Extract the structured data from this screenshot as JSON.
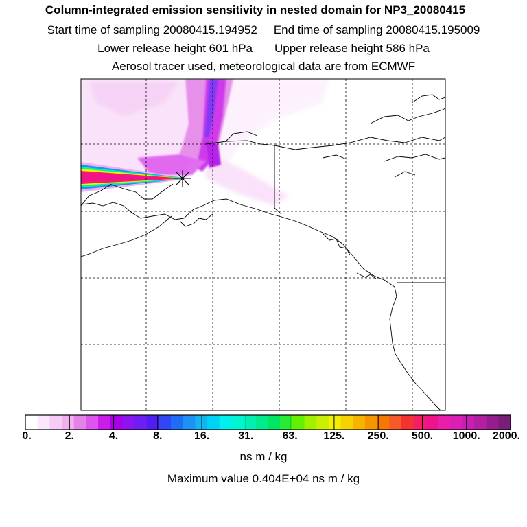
{
  "title": {
    "line1": "Column-integrated emission sensitivity in nested domain for NP3_20080415",
    "start_label": "Start time of sampling 20080415.194952",
    "end_label": "End time of sampling 20080415.195009",
    "lower_label": "Lower release height  601 hPa",
    "upper_label": "Upper release height  586 hPa",
    "line4": "Aerosol tracer used, meteorological data are from ECMWF"
  },
  "colorbar": {
    "ticks": [
      "0.",
      "2.",
      "4.",
      "8.",
      "16.",
      "31.",
      "63.",
      "125.",
      "250.",
      "500.",
      "1000.",
      "2000."
    ],
    "colors": [
      "#ffffff",
      "#fbe6fb",
      "#f6ccf6",
      "#f0b0f0",
      "#e482e8",
      "#dc55ee",
      "#c81ee8",
      "#aa00e6",
      "#8c14f0",
      "#6e1ef5",
      "#501ef0",
      "#3246f5",
      "#1e6ef5",
      "#1e91f5",
      "#14b4f0",
      "#00d2f5",
      "#00f0f0",
      "#00f5d2",
      "#00f0b4",
      "#00eb8c",
      "#00e664",
      "#28eb32",
      "#64f000",
      "#a0f000",
      "#c8f000",
      "#f0f000",
      "#f5d200",
      "#f5b400",
      "#f59600",
      "#f57800",
      "#f55a28",
      "#f53232",
      "#f51e64",
      "#f0148c",
      "#eb1eaa",
      "#dc1eb4",
      "#c81eb4",
      "#b41ea0",
      "#961e8c",
      "#781e78"
    ],
    "units": "ns m / kg"
  },
  "max_value_text": "Maximum value  0.404E+04 ns m / kg",
  "release_marker": "release-point-star"
}
